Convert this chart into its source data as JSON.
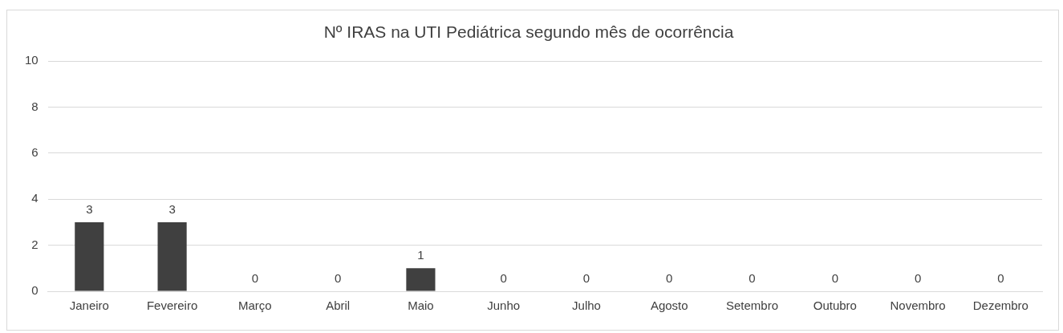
{
  "chart_data": {
    "type": "bar",
    "title": "Nº IRAS na UTI Pediátrica segundo mês de ocorrência",
    "categories": [
      "Janeiro",
      "Fevereiro",
      "Março",
      "Abril",
      "Maio",
      "Junho",
      "Julho",
      "Agosto",
      "Setembro",
      "Outubro",
      "Novembro",
      "Dezembro"
    ],
    "values": [
      3,
      3,
      0,
      0,
      1,
      0,
      0,
      0,
      0,
      0,
      0,
      0
    ],
    "color": "#404040",
    "ylim": [
      0,
      10
    ],
    "yticks": [
      0,
      2,
      4,
      6,
      8,
      10
    ],
    "grid": "y",
    "data_labels": true
  }
}
